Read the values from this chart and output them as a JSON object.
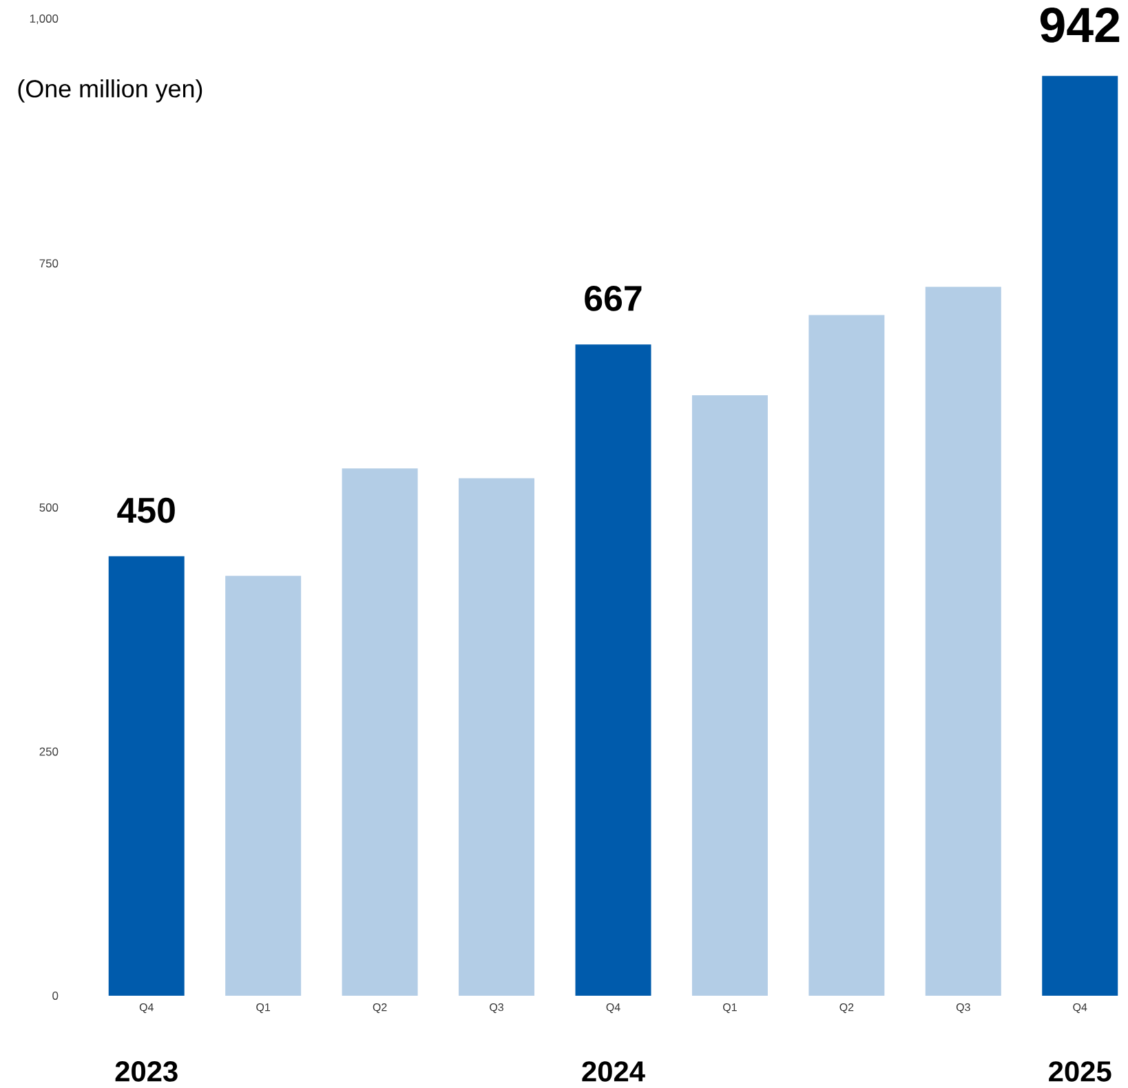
{
  "chart_data": {
    "type": "bar",
    "ylabel": "(One million yen)",
    "categories": [
      "Q4",
      "Q1",
      "Q2",
      "Q3",
      "Q4",
      "Q1",
      "Q2",
      "Q3",
      "Q4"
    ],
    "values": [
      450,
      430,
      540,
      530,
      667,
      615,
      697,
      726,
      942
    ],
    "colors": [
      "#005bac",
      "#b3cde6",
      "#b3cde6",
      "#b3cde6",
      "#005bac",
      "#b3cde6",
      "#b3cde6",
      "#b3cde6",
      "#005bac"
    ],
    "value_labels": [
      "450",
      null,
      null,
      null,
      "667",
      null,
      null,
      null,
      "942"
    ],
    "annotations": [
      "2023",
      "2024",
      "2025"
    ],
    "ylim": [
      0,
      1000
    ],
    "yticks": [
      0,
      250,
      500,
      750,
      {
        "value": 1000,
        "label": "1,000"
      }
    ]
  }
}
